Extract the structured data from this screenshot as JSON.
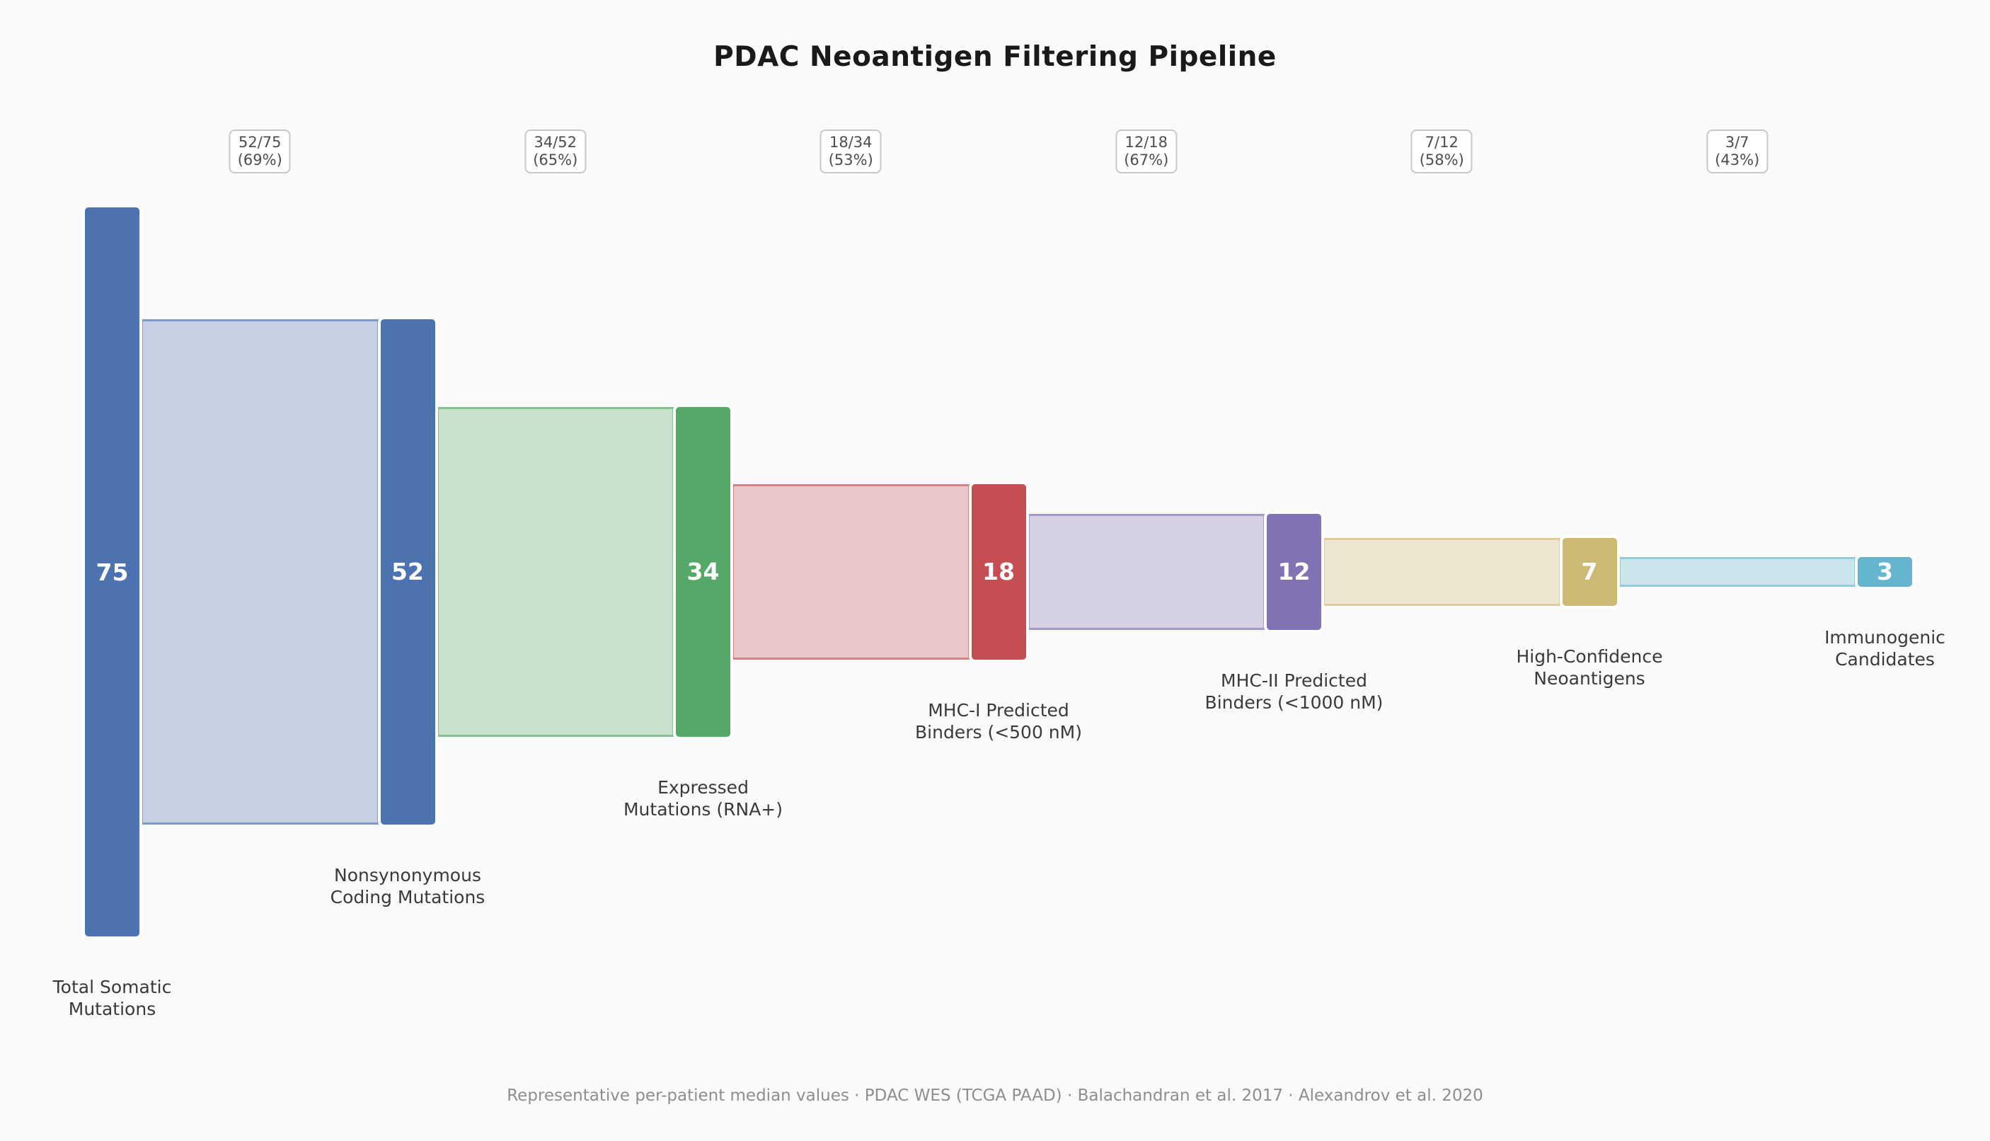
{
  "title": "PDAC Neoantigen Filtering Pipeline",
  "footer": "Representative per-patient median values · PDAC WES (TCGA PAAD) · Balachandran et al. 2017 · Alexandrov et al. 2020",
  "colors": {
    "background": "#FAFAFA",
    "title_text": "#1A1A1A",
    "stage_label_text": "#3A3A3A",
    "bar_value_text": "#FFFFFF",
    "badge_text": "#4D4D4D",
    "badge_border": "#C8C8C8",
    "badge_background": "#FFFFFF",
    "footer_text": "#8E8E8E"
  },
  "chart_data": {
    "type": "bar",
    "subtype": "funnel-pipeline",
    "title": "PDAC Neoantigen Filtering Pipeline",
    "max_value": 75,
    "grid": false,
    "stages": [
      {
        "label": "Total Somatic\nMutations",
        "value": 75,
        "color": "#4C72B0"
      },
      {
        "label": "Nonsynonymous\nCoding Mutations",
        "value": 52,
        "color": "#4C72B0"
      },
      {
        "label": "Expressed\nMutations (RNA+)",
        "value": 34,
        "color": "#55A868"
      },
      {
        "label": "MHC-I Predicted\nBinders (<500 nM)",
        "value": 18,
        "color": "#C44E52"
      },
      {
        "label": "MHC-II Predicted\nBinders (<1000 nM)",
        "value": 12,
        "color": "#8172B3"
      },
      {
        "label": "High-Confidence\nNeoantigens",
        "value": 7,
        "color": "#CCB974"
      },
      {
        "label": "Immunogenic\nCandidates",
        "value": 3,
        "color": "#64B5CD"
      }
    ],
    "connectors": [
      {
        "fraction": "52/75",
        "percent": "(69%)"
      },
      {
        "fraction": "34/52",
        "percent": "(65%)"
      },
      {
        "fraction": "18/34",
        "percent": "(53%)"
      },
      {
        "fraction": "12/18",
        "percent": "(67%)"
      },
      {
        "fraction": "7/12",
        "percent": "(58%)"
      },
      {
        "fraction": "3/7",
        "percent": "(43%)"
      }
    ]
  }
}
